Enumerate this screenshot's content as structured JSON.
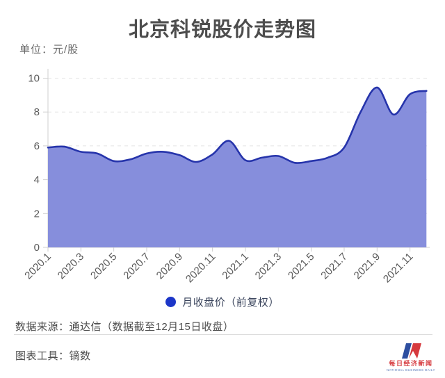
{
  "page": {
    "title": "北京科锐股价走势图",
    "unit_label": "单位：元/股"
  },
  "chart_data": {
    "type": "area",
    "title": "北京科锐股价走势图",
    "ylabel_unit": "元/股",
    "x": [
      "2020.1",
      "2020.2",
      "2020.3",
      "2020.4",
      "2020.5",
      "2020.6",
      "2020.7",
      "2020.8",
      "2020.9",
      "2020.10",
      "2020.11",
      "2020.12",
      "2021.1",
      "2021.2",
      "2021.3",
      "2021.4",
      "2021.5",
      "2021.6",
      "2021.7",
      "2021.8",
      "2021.9",
      "2021.10",
      "2021.11",
      "2021.12"
    ],
    "series": [
      {
        "name": "月收盘价（前复权）",
        "values": [
          5.9,
          5.95,
          5.65,
          5.55,
          5.1,
          5.2,
          5.55,
          5.65,
          5.45,
          5.05,
          5.5,
          6.3,
          5.15,
          5.3,
          5.4,
          5.0,
          5.1,
          5.3,
          5.9,
          8.0,
          9.45,
          7.85,
          9.05,
          9.25
        ]
      }
    ],
    "xtick_labels": [
      "2020.1",
      "2020.3",
      "2020.5",
      "2020.7",
      "2020.9",
      "2020.11",
      "2021.1",
      "2021.3",
      "2021.5",
      "2021.7",
      "2021.9",
      "2021.11"
    ],
    "yticks": [
      0,
      2,
      4,
      6,
      8,
      10
    ],
    "ylim": [
      0,
      10.5
    ],
    "grid": "horizontal-dashed",
    "legend_position": "bottom-center",
    "smooth": true,
    "line_color": "#2634ab",
    "fill_color": "#868edc",
    "axis_color": "#cfcfcf",
    "grid_color": "#e4e4e4",
    "tick_label_color": "#595959"
  },
  "legend": {
    "label": "月收盘价（前复权）",
    "dot_color": "#1c36c8"
  },
  "footer": {
    "source": "数据来源：通达信（数据截至12月15日收盘）",
    "tool": "图表工具：镝数"
  },
  "logo": {
    "cn": "每日经济新闻",
    "en": "NATIONAL BUSINESS DAILY",
    "blue": "#2d4ea0",
    "red": "#d63a3e"
  },
  "colors": {
    "title": "#4d4d4d",
    "text_gray": "#6b6b6b",
    "footer_text": "#4d4d4d"
  }
}
